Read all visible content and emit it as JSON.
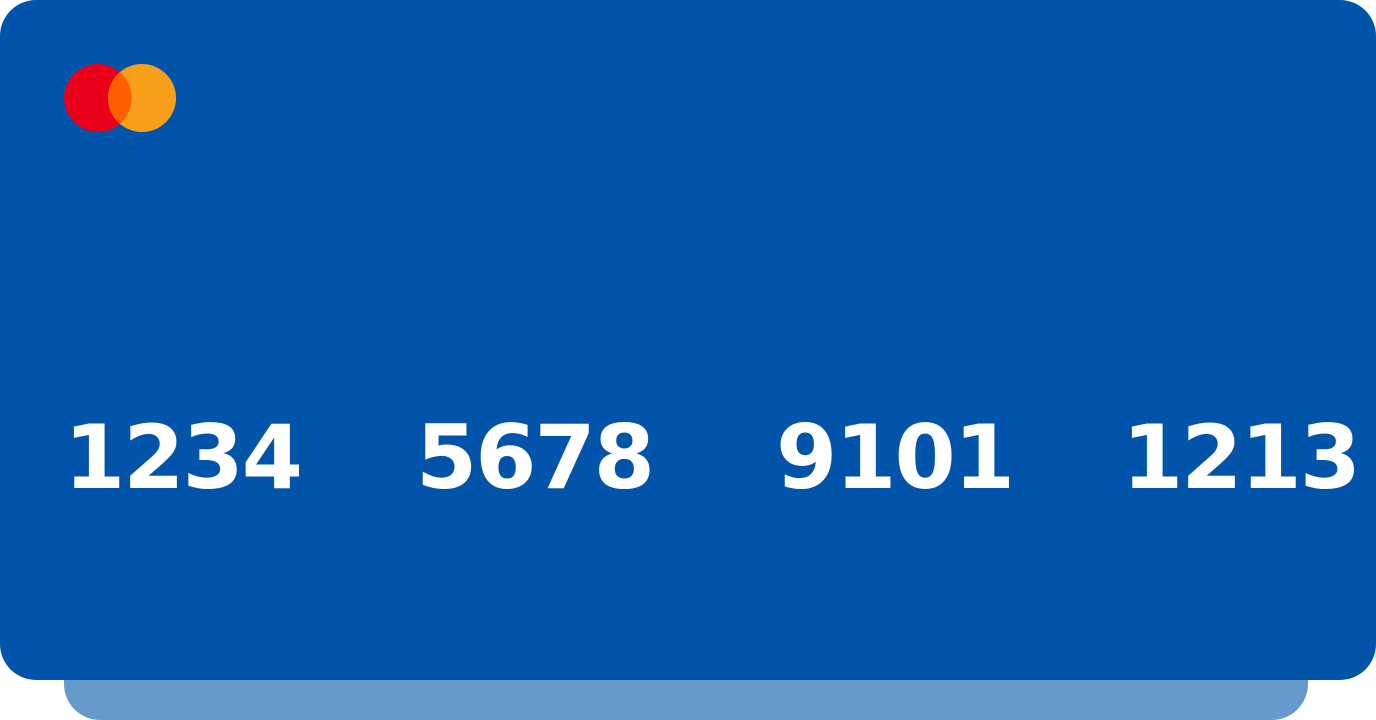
{
  "card": {
    "brand_icon": "mastercard-logo-icon",
    "number_groups": [
      "1234",
      "5678",
      "9101",
      "1213"
    ],
    "colors": {
      "card_background": "#0254aa",
      "card_shadow": "#6699cc",
      "logo_red": "#eb001b",
      "logo_orange": "#f79e1b",
      "logo_overlap": "#ff5f00",
      "number_text": "#ffffff"
    }
  }
}
